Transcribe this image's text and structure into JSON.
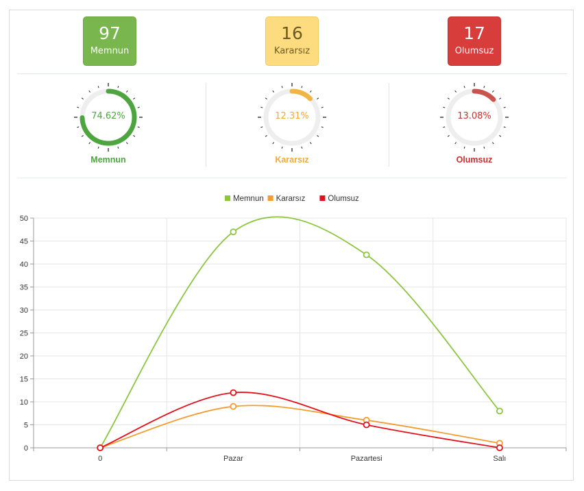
{
  "stats": [
    {
      "value": "97",
      "label": "Memnun"
    },
    {
      "value": "16",
      "label": "Kararsız"
    },
    {
      "value": "17",
      "label": "Olumsuz"
    }
  ],
  "gauges": [
    {
      "percent_text": "74.62%",
      "label": "Memnun",
      "fraction": 0.7462,
      "color": "#4ea53f",
      "text_color": "#4ea53f"
    },
    {
      "percent_text": "12.31%",
      "label": "Kararsız",
      "fraction": 0.1231,
      "color": "#f0b545",
      "text_color": "#f2a93b"
    },
    {
      "percent_text": "13.08%",
      "label": "Olumsuz",
      "fraction": 0.1308,
      "color": "#c9534f",
      "text_color": "#c9302c"
    }
  ],
  "colors": {
    "memnun": "#8cc63f",
    "kararsiz": "#f39c2f",
    "olumsuz": "#e3101b",
    "gauge_track": "#eeeeee",
    "grid": "#e5e5e5"
  },
  "chart_data": {
    "type": "line",
    "categories": [
      "0",
      "Pazar",
      "Pazartesi",
      "Salı"
    ],
    "series": [
      {
        "name": "Memnun",
        "values": [
          0,
          47,
          42,
          8
        ]
      },
      {
        "name": "Kararsız",
        "values": [
          0,
          9,
          6,
          1
        ]
      },
      {
        "name": "Olumsuz",
        "values": [
          0,
          12,
          5,
          0
        ]
      }
    ],
    "ylim": [
      0,
      50
    ],
    "yticks": [
      0,
      5,
      10,
      15,
      20,
      25,
      30,
      35,
      40,
      45,
      50
    ],
    "grid": true,
    "legend_position": "top-center"
  }
}
